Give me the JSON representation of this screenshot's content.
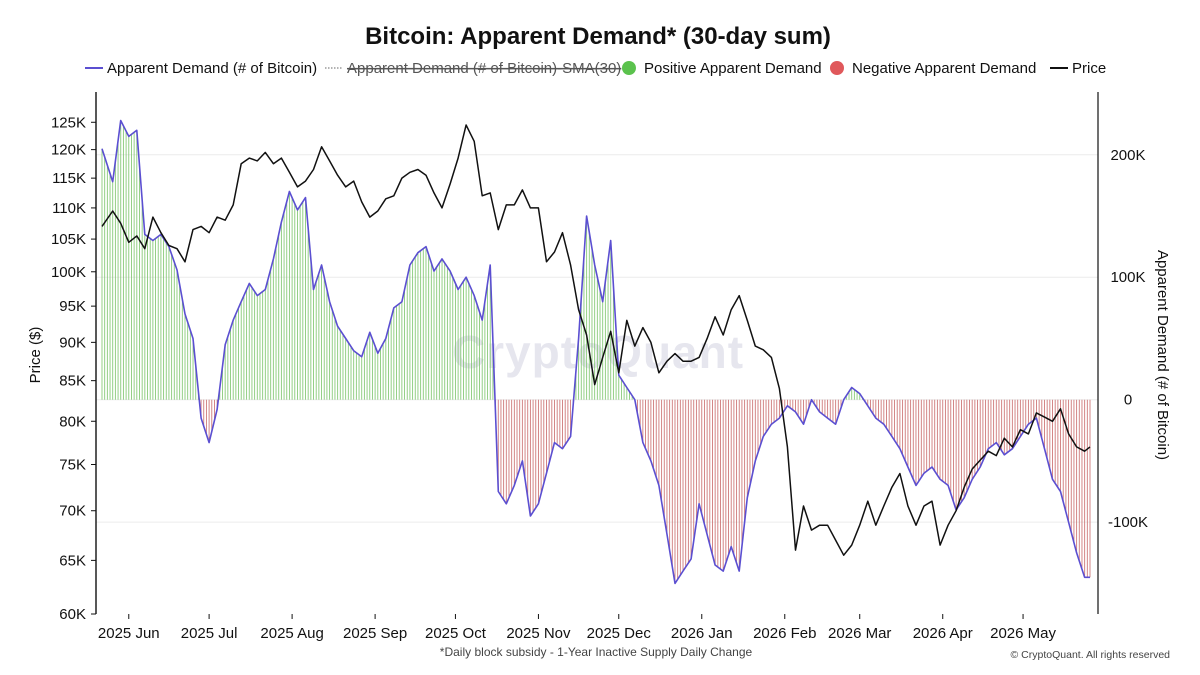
{
  "chart_data": {
    "type": "line",
    "title": "Bitcoin: Apparent Demand* (30-day sum)",
    "ylabel_left": "Price ($)",
    "ylabel_right": "Apparent Demand (# of Bitcoin)",
    "footnote": "*Daily block subsidy - 1-Year Inactive Supply Daily Change",
    "credit": "© CryptoQuant. All rights reserved",
    "watermark": "CryptoQuant",
    "x_tick_labels": [
      "2025 Jun",
      "2025 Jul",
      "2025 Aug",
      "2025 Sep",
      "2025 Oct",
      "2025 Nov",
      "2025 Dec",
      "2026 Jan",
      "2026 Feb",
      "2026 Mar",
      "2026 Apr",
      "2026 May"
    ],
    "x_range": [
      "2025-05-22",
      "2026-05-26"
    ],
    "left_axis": {
      "scale": "log",
      "ylim": [
        60000,
        130000
      ],
      "ticks": [
        60000,
        65000,
        70000,
        75000,
        80000,
        85000,
        90000,
        95000,
        100000,
        105000,
        110000,
        115000,
        120000,
        125000
      ],
      "tick_labels": [
        "60K",
        "65K",
        "70K",
        "75K",
        "80K",
        "85K",
        "90K",
        "95K",
        "100K",
        "105K",
        "110K",
        "115K",
        "120K",
        "125K"
      ]
    },
    "right_axis": {
      "scale": "linear",
      "ylim": [
        -175000,
        248000
      ],
      "ticks": [
        -100000,
        0,
        100000,
        200000
      ],
      "tick_labels": [
        "-100K",
        "0",
        "100K",
        "200K"
      ]
    },
    "grid": true,
    "legend": {
      "placement": "top",
      "items": [
        {
          "label": "Apparent Demand (# of Bitcoin)",
          "marker": "line",
          "color": "#5b4fd1",
          "enabled": true
        },
        {
          "label": "Apparent Demand (# of Bitcoin)-SMA(30)",
          "marker": "dotted-line",
          "color": "#9a9a9a",
          "enabled": false
        },
        {
          "label": "Positive Apparent Demand",
          "marker": "dot",
          "color": "#5bc24d",
          "enabled": true
        },
        {
          "label": "Negative Apparent Demand",
          "marker": "dot",
          "color": "#e0585b",
          "enabled": true
        },
        {
          "label": "Price",
          "marker": "line",
          "color": "#111111",
          "enabled": true
        }
      ]
    },
    "colors": {
      "demand_line": "#5b4fd1",
      "positive_bar": "#7bc46a",
      "negative_bar": "#c96a6a",
      "price_line": "#111111"
    },
    "series": [
      {
        "name": "Apparent Demand (# of Bitcoin)",
        "axis": "right",
        "x": [
          "2025-05-22",
          "2025-05-26",
          "2025-05-29",
          "2025-06-01",
          "2025-06-04",
          "2025-06-07",
          "2025-06-10",
          "2025-06-13",
          "2025-06-16",
          "2025-06-19",
          "2025-06-22",
          "2025-06-25",
          "2025-06-28",
          "2025-07-01",
          "2025-07-04",
          "2025-07-07",
          "2025-07-10",
          "2025-07-13",
          "2025-07-16",
          "2025-07-19",
          "2025-07-22",
          "2025-07-25",
          "2025-07-28",
          "2025-07-31",
          "2025-08-03",
          "2025-08-06",
          "2025-08-09",
          "2025-08-12",
          "2025-08-15",
          "2025-08-18",
          "2025-08-21",
          "2025-08-24",
          "2025-08-27",
          "2025-08-30",
          "2025-09-02",
          "2025-09-05",
          "2025-09-08",
          "2025-09-11",
          "2025-09-14",
          "2025-09-17",
          "2025-09-20",
          "2025-09-23",
          "2025-09-26",
          "2025-09-29",
          "2025-10-02",
          "2025-10-05",
          "2025-10-08",
          "2025-10-11",
          "2025-10-14",
          "2025-10-17",
          "2025-10-20",
          "2025-10-23",
          "2025-10-26",
          "2025-10-29",
          "2025-11-01",
          "2025-11-04",
          "2025-11-07",
          "2025-11-10",
          "2025-11-13",
          "2025-11-16",
          "2025-11-19",
          "2025-11-22",
          "2025-11-25",
          "2025-11-28",
          "2025-12-01",
          "2025-12-04",
          "2025-12-07",
          "2025-12-10",
          "2025-12-13",
          "2025-12-16",
          "2025-12-19",
          "2025-12-22",
          "2025-12-25",
          "2025-12-28",
          "2025-12-31",
          "2026-01-03",
          "2026-01-06",
          "2026-01-09",
          "2026-01-12",
          "2026-01-15",
          "2026-01-18",
          "2026-01-21",
          "2026-01-24",
          "2026-01-27",
          "2026-01-30",
          "2026-02-02",
          "2026-02-05",
          "2026-02-08",
          "2026-02-11",
          "2026-02-14",
          "2026-02-17",
          "2026-02-20",
          "2026-02-23",
          "2026-02-26",
          "2026-03-01",
          "2026-03-04",
          "2026-03-07",
          "2026-03-10",
          "2026-03-13",
          "2026-03-16",
          "2026-03-19",
          "2026-03-22",
          "2026-03-25",
          "2026-03-28",
          "2026-03-31",
          "2026-04-03",
          "2026-04-06",
          "2026-04-09",
          "2026-04-12",
          "2026-04-15",
          "2026-04-18",
          "2026-04-21",
          "2026-04-24",
          "2026-04-27",
          "2026-04-30",
          "2026-05-03",
          "2026-05-06",
          "2026-05-09",
          "2026-05-12",
          "2026-05-15",
          "2026-05-18",
          "2026-05-21",
          "2026-05-24",
          "2026-05-26"
        ],
        "values": [
          205000,
          178000,
          228000,
          215000,
          220000,
          135000,
          130000,
          135000,
          125000,
          106000,
          70000,
          50000,
          -15000,
          -35000,
          -8000,
          45000,
          65000,
          80000,
          95000,
          85000,
          90000,
          115000,
          145000,
          170000,
          155000,
          165000,
          90000,
          110000,
          80000,
          60000,
          50000,
          40000,
          35000,
          55000,
          38000,
          50000,
          75000,
          80000,
          110000,
          120000,
          125000,
          105000,
          115000,
          105000,
          90000,
          100000,
          85000,
          65000,
          110000,
          -75000,
          -85000,
          -70000,
          -50000,
          -95000,
          -85000,
          -60000,
          -35000,
          -40000,
          -30000,
          50000,
          150000,
          110000,
          80000,
          130000,
          20000,
          10000,
          0,
          -35000,
          -50000,
          -70000,
          -110000,
          -150000,
          -140000,
          -130000,
          -85000,
          -110000,
          -135000,
          -140000,
          -120000,
          -140000,
          -80000,
          -50000,
          -30000,
          -20000,
          -15000,
          -5000,
          -10000,
          -20000,
          0,
          -10000,
          -15000,
          -20000,
          0,
          10000,
          5000,
          -5000,
          -15000,
          -20000,
          -30000,
          -40000,
          -55000,
          -70000,
          -60000,
          -55000,
          -65000,
          -70000,
          -90000,
          -80000,
          -65000,
          -55000,
          -40000,
          -35000,
          -45000,
          -40000,
          -30000,
          -20000,
          -15000,
          -40000,
          -65000,
          -75000,
          -100000,
          -125000,
          -145000,
          -145000
        ]
      },
      {
        "name": "Price",
        "axis": "left",
        "x": [
          "2025-05-22",
          "2025-05-26",
          "2025-05-29",
          "2025-06-01",
          "2025-06-04",
          "2025-06-07",
          "2025-06-10",
          "2025-06-13",
          "2025-06-16",
          "2025-06-19",
          "2025-06-22",
          "2025-06-25",
          "2025-06-28",
          "2025-07-01",
          "2025-07-04",
          "2025-07-07",
          "2025-07-10",
          "2025-07-13",
          "2025-07-16",
          "2025-07-19",
          "2025-07-22",
          "2025-07-25",
          "2025-07-28",
          "2025-07-31",
          "2025-08-03",
          "2025-08-06",
          "2025-08-09",
          "2025-08-12",
          "2025-08-15",
          "2025-08-18",
          "2025-08-21",
          "2025-08-24",
          "2025-08-27",
          "2025-08-30",
          "2025-09-02",
          "2025-09-05",
          "2025-09-08",
          "2025-09-11",
          "2025-09-14",
          "2025-09-17",
          "2025-09-20",
          "2025-09-23",
          "2025-09-26",
          "2025-09-29",
          "2025-10-02",
          "2025-10-05",
          "2025-10-08",
          "2025-10-11",
          "2025-10-14",
          "2025-10-17",
          "2025-10-20",
          "2025-10-23",
          "2025-10-26",
          "2025-10-29",
          "2025-11-01",
          "2025-11-04",
          "2025-11-07",
          "2025-11-10",
          "2025-11-13",
          "2025-11-16",
          "2025-11-19",
          "2025-11-22",
          "2025-11-25",
          "2025-11-28",
          "2025-12-01",
          "2025-12-04",
          "2025-12-07",
          "2025-12-10",
          "2025-12-13",
          "2025-12-16",
          "2025-12-19",
          "2025-12-22",
          "2025-12-25",
          "2025-12-28",
          "2025-12-31",
          "2026-01-03",
          "2026-01-06",
          "2026-01-09",
          "2026-01-12",
          "2026-01-15",
          "2026-01-18",
          "2026-01-21",
          "2026-01-24",
          "2026-01-27",
          "2026-01-30",
          "2026-02-02",
          "2026-02-05",
          "2026-02-08",
          "2026-02-11",
          "2026-02-14",
          "2026-02-17",
          "2026-02-20",
          "2026-02-23",
          "2026-02-26",
          "2026-03-01",
          "2026-03-04",
          "2026-03-07",
          "2026-03-10",
          "2026-03-13",
          "2026-03-16",
          "2026-03-19",
          "2026-03-22",
          "2026-03-25",
          "2026-03-28",
          "2026-03-31",
          "2026-04-03",
          "2026-04-06",
          "2026-04-09",
          "2026-04-12",
          "2026-04-15",
          "2026-04-18",
          "2026-04-21",
          "2026-04-24",
          "2026-04-27",
          "2026-04-30",
          "2026-05-03",
          "2026-05-06",
          "2026-05-09",
          "2026-05-12",
          "2026-05-15",
          "2026-05-18",
          "2026-05-21",
          "2026-05-24",
          "2026-05-26"
        ],
        "values": [
          107000,
          109500,
          107500,
          104500,
          105500,
          103500,
          108500,
          106000,
          104000,
          103500,
          101500,
          106500,
          107000,
          106000,
          108500,
          108000,
          110500,
          117500,
          118500,
          118000,
          119500,
          117500,
          118500,
          116000,
          113500,
          114500,
          116500,
          120500,
          118000,
          115500,
          113500,
          114500,
          111000,
          108500,
          109500,
          111500,
          112000,
          115000,
          116000,
          116500,
          115500,
          112500,
          110000,
          114000,
          118500,
          124500,
          121500,
          112000,
          112500,
          106500,
          110500,
          110500,
          113000,
          110000,
          110000,
          101500,
          103000,
          106000,
          101000,
          94500,
          91000,
          84500,
          88000,
          91500,
          86000,
          93000,
          89500,
          92000,
          90000,
          86000,
          87500,
          88500,
          87500,
          87500,
          88000,
          90500,
          93500,
          91000,
          94500,
          96500,
          93000,
          89500,
          89000,
          88000,
          84000,
          77000,
          66000,
          70500,
          68000,
          68500,
          68500,
          67000,
          65500,
          66500,
          68500,
          71000,
          68500,
          70500,
          72500,
          74000,
          70500,
          68500,
          70500,
          71000,
          66500,
          68500,
          70000,
          72500,
          74500,
          75500,
          76500,
          76000,
          78000,
          77000,
          79000,
          78500,
          81000,
          80500,
          80000,
          81500,
          78500,
          77000,
          76500,
          77000
        ]
      }
    ]
  }
}
